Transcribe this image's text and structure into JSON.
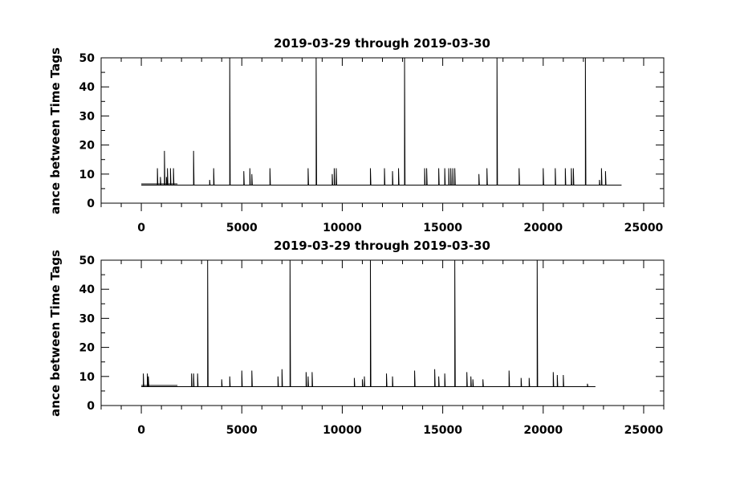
{
  "chart_data": [
    {
      "type": "line",
      "title": "2019-03-29 through 2019-03-30",
      "ylabel": "ance between Time Tags",
      "xlabel": "",
      "xlim": [
        -2000,
        26000
      ],
      "ylim": [
        0,
        50
      ],
      "x_ticks": [
        0,
        5000,
        10000,
        15000,
        20000,
        25000
      ],
      "y_ticks": [
        0,
        10,
        20,
        30,
        40,
        50
      ],
      "grid": false,
      "color": "#000000",
      "series": [
        {
          "baseline": 6.2,
          "x_range": [
            0,
            23900
          ],
          "spikes": [
            {
              "x": 800,
              "y": 12
            },
            {
              "x": 950,
              "y": 9
            },
            {
              "x": 1150,
              "y": 18
            },
            {
              "x": 1250,
              "y": 9
            },
            {
              "x": 1300,
              "y": 12
            },
            {
              "x": 1450,
              "y": 12
            },
            {
              "x": 1600,
              "y": 12
            },
            {
              "x": 2600,
              "y": 18
            },
            {
              "x": 3400,
              "y": 8
            },
            {
              "x": 3600,
              "y": 12
            },
            {
              "x": 4400,
              "y": 50
            },
            {
              "x": 5100,
              "y": 11
            },
            {
              "x": 5400,
              "y": 12
            },
            {
              "x": 5500,
              "y": 10
            },
            {
              "x": 6400,
              "y": 12
            },
            {
              "x": 8300,
              "y": 12
            },
            {
              "x": 8700,
              "y": 50
            },
            {
              "x": 9500,
              "y": 10
            },
            {
              "x": 9600,
              "y": 12
            },
            {
              "x": 9700,
              "y": 12
            },
            {
              "x": 11400,
              "y": 12
            },
            {
              "x": 12100,
              "y": 12
            },
            {
              "x": 12500,
              "y": 11
            },
            {
              "x": 12800,
              "y": 12
            },
            {
              "x": 13100,
              "y": 50
            },
            {
              "x": 14100,
              "y": 12
            },
            {
              "x": 14200,
              "y": 12
            },
            {
              "x": 14800,
              "y": 12
            },
            {
              "x": 15100,
              "y": 12
            },
            {
              "x": 15300,
              "y": 12
            },
            {
              "x": 15400,
              "y": 12
            },
            {
              "x": 15500,
              "y": 12
            },
            {
              "x": 15600,
              "y": 12
            },
            {
              "x": 16800,
              "y": 10
            },
            {
              "x": 17200,
              "y": 12
            },
            {
              "x": 17700,
              "y": 50
            },
            {
              "x": 18800,
              "y": 12
            },
            {
              "x": 20000,
              "y": 12
            },
            {
              "x": 20600,
              "y": 12
            },
            {
              "x": 21100,
              "y": 12
            },
            {
              "x": 21400,
              "y": 12
            },
            {
              "x": 21500,
              "y": 12
            },
            {
              "x": 22100,
              "y": 50
            },
            {
              "x": 22800,
              "y": 8
            },
            {
              "x": 22900,
              "y": 12
            },
            {
              "x": 23100,
              "y": 11
            }
          ]
        }
      ]
    },
    {
      "type": "line",
      "title": "2019-03-29 through 2019-03-30",
      "ylabel": "ance between Time Tags",
      "xlabel": "",
      "xlim": [
        -2000,
        26000
      ],
      "ylim": [
        0,
        50
      ],
      "x_ticks": [
        0,
        5000,
        10000,
        15000,
        20000,
        25000
      ],
      "y_ticks": [
        0,
        10,
        20,
        30,
        40,
        50
      ],
      "grid": false,
      "color": "#000000",
      "series": [
        {
          "baseline": 6.5,
          "x_range": [
            0,
            22600
          ],
          "spikes": [
            {
              "x": 100,
              "y": 11
            },
            {
              "x": 300,
              "y": 11
            },
            {
              "x": 350,
              "y": 10
            },
            {
              "x": 2500,
              "y": 11
            },
            {
              "x": 2600,
              "y": 11
            },
            {
              "x": 2800,
              "y": 11
            },
            {
              "x": 3300,
              "y": 50
            },
            {
              "x": 4000,
              "y": 9
            },
            {
              "x": 4400,
              "y": 10
            },
            {
              "x": 5000,
              "y": 12
            },
            {
              "x": 5500,
              "y": 12
            },
            {
              "x": 6800,
              "y": 10
            },
            {
              "x": 7000,
              "y": 12.5
            },
            {
              "x": 7400,
              "y": 50
            },
            {
              "x": 8200,
              "y": 11.5
            },
            {
              "x": 8300,
              "y": 10
            },
            {
              "x": 8500,
              "y": 11.5
            },
            {
              "x": 10600,
              "y": 9.5
            },
            {
              "x": 11000,
              "y": 9
            },
            {
              "x": 11100,
              "y": 10
            },
            {
              "x": 11400,
              "y": 50
            },
            {
              "x": 12200,
              "y": 11
            },
            {
              "x": 12500,
              "y": 10
            },
            {
              "x": 13600,
              "y": 12
            },
            {
              "x": 14600,
              "y": 12.5
            },
            {
              "x": 14800,
              "y": 10
            },
            {
              "x": 15100,
              "y": 11
            },
            {
              "x": 15600,
              "y": 50
            },
            {
              "x": 16200,
              "y": 11.5
            },
            {
              "x": 16400,
              "y": 10
            },
            {
              "x": 16500,
              "y": 9
            },
            {
              "x": 17000,
              "y": 9
            },
            {
              "x": 18300,
              "y": 12
            },
            {
              "x": 18900,
              "y": 9.5
            },
            {
              "x": 19300,
              "y": 9.5
            },
            {
              "x": 19700,
              "y": 50
            },
            {
              "x": 20500,
              "y": 11.5
            },
            {
              "x": 20700,
              "y": 10.5
            },
            {
              "x": 21000,
              "y": 10.5
            },
            {
              "x": 22200,
              "y": 7.5
            }
          ]
        }
      ]
    }
  ]
}
